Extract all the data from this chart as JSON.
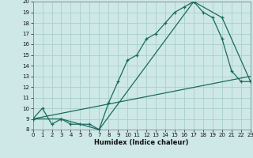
{
  "xlabel": "Humidex (Indice chaleur)",
  "bg_color": "#cde8e6",
  "grid_color": "#aacfcd",
  "line_color": "#1a6b5e",
  "xlim": [
    0,
    23
  ],
  "ylim": [
    8,
    20
  ],
  "yticks": [
    8,
    9,
    10,
    11,
    12,
    13,
    14,
    15,
    16,
    17,
    18,
    19,
    20
  ],
  "xticks": [
    0,
    1,
    2,
    3,
    4,
    5,
    6,
    7,
    8,
    9,
    10,
    11,
    12,
    13,
    14,
    15,
    16,
    17,
    18,
    19,
    20,
    21,
    22,
    23
  ],
  "line1_x": [
    0,
    1,
    2,
    3,
    4,
    5,
    6,
    7,
    8,
    9,
    10,
    11,
    12,
    13,
    14,
    15,
    16,
    17,
    18,
    19,
    20,
    21,
    22,
    23
  ],
  "line1_y": [
    9,
    10,
    8.5,
    9,
    8.5,
    8.5,
    8.5,
    8.0,
    10.5,
    12.5,
    14.5,
    15,
    16.5,
    17,
    18,
    19,
    19.5,
    20,
    19,
    18.5,
    16.5,
    13.5,
    12.5,
    12.5
  ],
  "line2_x": [
    0,
    23
  ],
  "line2_y": [
    9,
    13
  ],
  "line3_x": [
    0,
    3,
    7,
    17,
    20,
    23
  ],
  "line3_y": [
    9,
    9,
    8,
    20,
    18.5,
    12.5
  ],
  "xlabel_fontsize": 6.0,
  "tick_fontsize": 5.0
}
